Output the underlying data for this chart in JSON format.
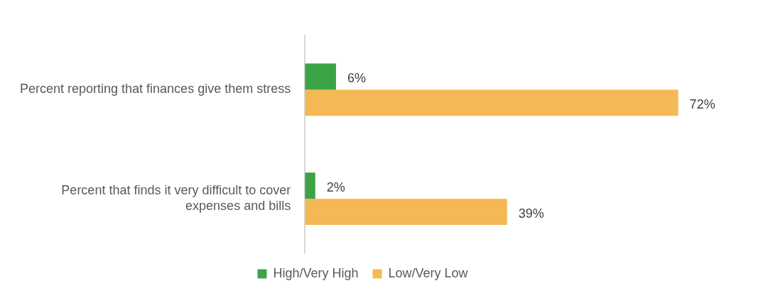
{
  "chart_data": {
    "type": "bar",
    "orientation": "horizontal",
    "categories": [
      "Percent reporting that finances give them stress",
      "Percent that finds it very difficult to cover expenses and bills"
    ],
    "series": [
      {
        "name": "High/Very High",
        "color": "#3ca447",
        "values": [
          6,
          2
        ],
        "value_labels": [
          "6%",
          "2%"
        ]
      },
      {
        "name": "Low/Very Low",
        "color": "#f4b955",
        "values": [
          72,
          39
        ],
        "value_labels": [
          "72%",
          "39%"
        ]
      }
    ],
    "legend": "bottom",
    "tick_labels": "y"
  }
}
